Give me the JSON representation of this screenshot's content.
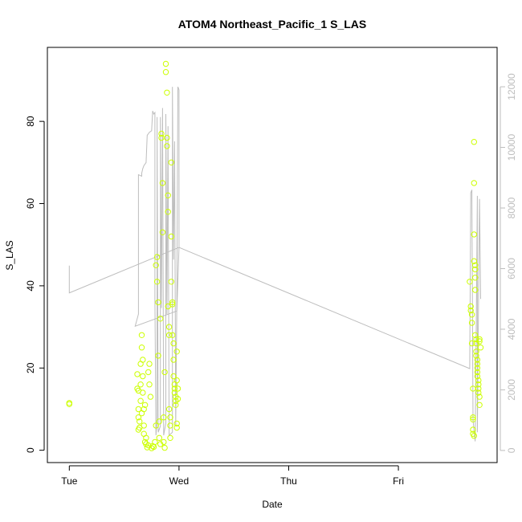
{
  "chart_data": {
    "type": "scatter",
    "title": "ATOM4 Northeast_Pacific_1 S_LAS",
    "xlabel": "Date",
    "ylabel": "S_LAS",
    "x_ticks": [
      "Tue",
      "Wed",
      "Thu",
      "Fri"
    ],
    "y_ticks": [
      "0",
      "20",
      "40",
      "60",
      "80"
    ],
    "y2_ticks": [
      "0",
      "2000",
      "4000",
      "6000",
      "8000",
      "10000",
      "12000"
    ],
    "xlim_days": [
      -0.2,
      3.9
    ],
    "ylim": [
      -3,
      98
    ],
    "y2lim": [
      -400,
      13300
    ],
    "colors": {
      "points": "#ccff00",
      "line": "#bdbdbd",
      "axis": "#000000",
      "right_axis": "#bdbdbd"
    },
    "series": [
      {
        "type": "points",
        "values": [
          [
            0.0,
            11.5
          ],
          [
            0.0,
            11.2
          ],
          [
            0.62,
            15
          ],
          [
            0.62,
            18.5
          ],
          [
            0.63,
            14.5
          ],
          [
            0.63,
            10
          ],
          [
            0.63,
            8
          ],
          [
            0.63,
            5
          ],
          [
            0.64,
            5.5
          ],
          [
            0.64,
            7
          ],
          [
            0.65,
            21
          ],
          [
            0.65,
            16
          ],
          [
            0.65,
            12
          ],
          [
            0.66,
            9
          ],
          [
            0.66,
            25
          ],
          [
            0.66,
            28
          ],
          [
            0.67,
            22
          ],
          [
            0.67,
            18
          ],
          [
            0.67,
            14
          ],
          [
            0.68,
            10
          ],
          [
            0.68,
            6
          ],
          [
            0.68,
            4
          ],
          [
            0.69,
            2
          ],
          [
            0.69,
            11
          ],
          [
            0.7,
            3
          ],
          [
            0.7,
            1.5
          ],
          [
            0.71,
            0.7
          ],
          [
            0.72,
            1.2
          ],
          [
            0.72,
            19
          ],
          [
            0.73,
            21
          ],
          [
            0.73,
            16
          ],
          [
            0.74,
            13
          ],
          [
            0.75,
            0.5
          ],
          [
            0.76,
            1
          ],
          [
            0.77,
            0.8
          ],
          [
            0.78,
            2
          ],
          [
            0.79,
            6
          ],
          [
            0.79,
            45
          ],
          [
            0.8,
            47
          ],
          [
            0.8,
            41
          ],
          [
            0.81,
            36
          ],
          [
            0.81,
            23
          ],
          [
            0.82,
            7
          ],
          [
            0.82,
            3
          ],
          [
            0.83,
            1.5
          ],
          [
            0.83,
            32
          ],
          [
            0.84,
            76
          ],
          [
            0.84,
            77
          ],
          [
            0.85,
            65
          ],
          [
            0.85,
            53
          ],
          [
            0.86,
            8
          ],
          [
            0.86,
            2
          ],
          [
            0.87,
            0.6
          ],
          [
            0.87,
            19
          ],
          [
            0.88,
            94
          ],
          [
            0.88,
            92
          ],
          [
            0.89,
            87
          ],
          [
            0.89,
            76
          ],
          [
            0.89,
            74
          ],
          [
            0.9,
            62
          ],
          [
            0.9,
            58
          ],
          [
            0.9,
            35
          ],
          [
            0.91,
            30
          ],
          [
            0.91,
            28
          ],
          [
            0.91,
            10
          ],
          [
            0.92,
            8
          ],
          [
            0.92,
            6
          ],
          [
            0.92,
            3
          ],
          [
            0.93,
            70
          ],
          [
            0.93,
            52
          ],
          [
            0.93,
            41
          ],
          [
            0.94,
            36
          ],
          [
            0.94,
            35.5
          ],
          [
            0.94,
            28
          ],
          [
            0.95,
            26
          ],
          [
            0.95,
            22
          ],
          [
            0.95,
            18
          ],
          [
            0.96,
            16
          ],
          [
            0.96,
            15
          ],
          [
            0.96,
            14
          ],
          [
            0.97,
            13
          ],
          [
            0.97,
            12
          ],
          [
            0.97,
            11
          ],
          [
            0.98,
            24
          ],
          [
            0.98,
            17
          ],
          [
            0.98,
            6.5
          ],
          [
            0.98,
            5.5
          ],
          [
            0.99,
            15
          ],
          [
            0.99,
            12.5
          ],
          [
            3.65,
            41
          ],
          [
            3.66,
            35
          ],
          [
            3.66,
            34
          ],
          [
            3.67,
            33
          ],
          [
            3.67,
            31
          ],
          [
            3.67,
            26
          ],
          [
            3.68,
            15
          ],
          [
            3.68,
            8
          ],
          [
            3.68,
            7.5
          ],
          [
            3.68,
            5
          ],
          [
            3.68,
            4
          ],
          [
            3.69,
            3.5
          ],
          [
            3.69,
            75
          ],
          [
            3.69,
            65
          ],
          [
            3.69,
            52.5
          ],
          [
            3.69,
            46
          ],
          [
            3.7,
            45
          ],
          [
            3.7,
            44
          ],
          [
            3.7,
            42
          ],
          [
            3.7,
            39
          ],
          [
            3.7,
            28
          ],
          [
            3.71,
            27
          ],
          [
            3.71,
            26
          ],
          [
            3.71,
            24
          ],
          [
            3.71,
            23
          ],
          [
            3.72,
            22
          ],
          [
            3.72,
            21
          ],
          [
            3.72,
            20
          ],
          [
            3.72,
            19
          ],
          [
            3.72,
            18
          ],
          [
            3.73,
            17
          ],
          [
            3.73,
            16
          ],
          [
            3.73,
            15
          ],
          [
            3.73,
            14
          ],
          [
            3.74,
            13
          ],
          [
            3.74,
            11
          ],
          [
            3.74,
            27
          ],
          [
            3.74,
            26.5
          ],
          [
            3.75,
            25
          ]
        ]
      },
      {
        "type": "line",
        "axis": "right",
        "values": [
          [
            0.0,
            6100
          ],
          [
            0.0,
            5200
          ],
          [
            1.0,
            6700
          ],
          [
            0.98,
            4600
          ],
          [
            0.6,
            4100
          ],
          [
            0.63,
            4500
          ],
          [
            0.63,
            8100
          ],
          [
            0.63,
            9100
          ],
          [
            0.66,
            9050
          ],
          [
            0.66,
            9150
          ],
          [
            0.67,
            9300
          ],
          [
            0.68,
            9400
          ],
          [
            0.7,
            9500
          ],
          [
            0.71,
            10400
          ],
          [
            0.72,
            10450
          ],
          [
            0.73,
            10500
          ],
          [
            0.75,
            10550
          ],
          [
            0.76,
            11200
          ],
          [
            0.77,
            11100
          ],
          [
            0.78,
            11150
          ],
          [
            0.78,
            5000
          ],
          [
            0.79,
            500
          ],
          [
            0.8,
            1000
          ],
          [
            0.8,
            11000
          ],
          [
            0.81,
            600
          ],
          [
            0.83,
            800
          ],
          [
            0.83,
            11000
          ],
          [
            0.84,
            4700
          ],
          [
            0.85,
            11300
          ],
          [
            0.86,
            500
          ],
          [
            0.88,
            900
          ],
          [
            0.88,
            11100
          ],
          [
            0.89,
            4500
          ],
          [
            0.9,
            10700
          ],
          [
            0.91,
            500
          ],
          [
            0.94,
            600
          ],
          [
            0.94,
            12000
          ],
          [
            0.95,
            6300
          ],
          [
            0.96,
            10200
          ],
          [
            0.97,
            800
          ],
          [
            0.98,
            5000
          ],
          [
            0.99,
            12000
          ],
          [
            1.0,
            11900
          ],
          [
            1.0,
            6700
          ],
          [
            3.65,
            2700
          ],
          [
            3.66,
            8500
          ],
          [
            3.67,
            8600
          ],
          [
            3.67,
            8400
          ],
          [
            3.68,
            1000
          ],
          [
            3.7,
            300
          ],
          [
            3.71,
            4000
          ],
          [
            3.72,
            8400
          ],
          [
            3.72,
            600
          ],
          [
            3.74,
            8300
          ],
          [
            3.75,
            5000
          ]
        ]
      }
    ],
    "grid": false,
    "legend": "none"
  }
}
